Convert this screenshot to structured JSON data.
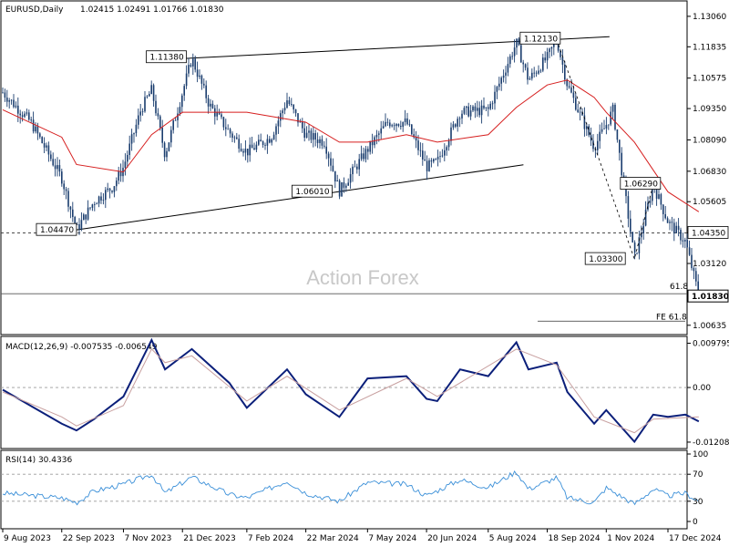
{
  "header": {
    "symbol": "EURUSD,Daily",
    "ohlc": "1.02415 1.02491 1.01766 1.01830"
  },
  "watermark": "Action Forex",
  "colors": {
    "background": "#ffffff",
    "candle": "#1a3d6e",
    "ma": "#d61f1f",
    "macd": "#0b1f7a",
    "signal": "#c8a0a0",
    "rsi": "#3a8fd8",
    "grid": "#9a9a9a"
  },
  "chart_data": [
    {
      "type": "candlestick",
      "title": "EURUSD,Daily",
      "x_tick_labels": [
        "9 Aug 2023",
        "22 Sep 2023",
        "7 Nov 2023",
        "21 Dec 2023",
        "7 Feb 2024",
        "22 Mar 2024",
        "7 May 2024",
        "20 Jun 2024",
        "5 Aug 2024",
        "18 Sep 2024",
        "1 Nov 2024",
        "17 Dec 2024"
      ],
      "y_tick_labels": [
        "1.13060",
        "1.11835",
        "1.10575",
        "1.09350",
        "1.08090",
        "1.06830",
        "1.05605",
        "1.04350",
        "1.03120",
        "1.01830",
        "1.00635"
      ],
      "ylim": [
        1.0026,
        1.1368
      ],
      "current_price": "1.01830",
      "highlight_level": "1.04350",
      "price_path": [
        {
          "x": "9 Aug 2023",
          "y": 1.1
        },
        {
          "x": "30 Aug 2023",
          "y": 1.088
        },
        {
          "x": "22 Sep 2023",
          "y": 1.0655
        },
        {
          "x": "3 Oct 2023",
          "y": 1.0448
        },
        {
          "x": "16 Oct 2023",
          "y": 1.056
        },
        {
          "x": "30 Oct 2023",
          "y": 1.062
        },
        {
          "x": "7 Nov 2023",
          "y": 1.07
        },
        {
          "x": "20 Nov 2023",
          "y": 1.093
        },
        {
          "x": "28 Nov 2023",
          "y": 1.101
        },
        {
          "x": "8 Dec 2023",
          "y": 1.075
        },
        {
          "x": "21 Dec 2023",
          "y": 1.1
        },
        {
          "x": "28 Dec 2023",
          "y": 1.1138
        },
        {
          "x": "10 Jan 2024",
          "y": 1.095
        },
        {
          "x": "25 Jan 2024",
          "y": 1.084
        },
        {
          "x": "7 Feb 2024",
          "y": 1.076
        },
        {
          "x": "25 Feb 2024",
          "y": 1.082
        },
        {
          "x": "8 Mar 2024",
          "y": 1.097
        },
        {
          "x": "22 Mar 2024",
          "y": 1.083
        },
        {
          "x": "5 Apr 2024",
          "y": 1.08
        },
        {
          "x": "16 Apr 2024",
          "y": 1.0602
        },
        {
          "x": "7 May 2024",
          "y": 1.077
        },
        {
          "x": "22 May 2024",
          "y": 1.088
        },
        {
          "x": "5 Jun 2024",
          "y": 1.088
        },
        {
          "x": "20 Jun 2024",
          "y": 1.07
        },
        {
          "x": "28 Jun 2024",
          "y": 1.072
        },
        {
          "x": "15 Jul 2024",
          "y": 1.092
        },
        {
          "x": "5 Aug 2024",
          "y": 1.093
        },
        {
          "x": "26 Aug 2024",
          "y": 1.12
        },
        {
          "x": "4 Sep 2024",
          "y": 1.105
        },
        {
          "x": "18 Sep 2024",
          "y": 1.114
        },
        {
          "x": "25 Sep 2024",
          "y": 1.1213
        },
        {
          "x": "3 Oct 2024",
          "y": 1.103
        },
        {
          "x": "23 Oct 2024",
          "y": 1.078
        },
        {
          "x": "1 Nov 2024",
          "y": 1.087
        },
        {
          "x": "6 Nov 2024",
          "y": 1.093
        },
        {
          "x": "22 Nov 2024",
          "y": 1.033
        },
        {
          "x": "6 Dec 2024",
          "y": 1.0629
        },
        {
          "x": "17 Dec 2024",
          "y": 1.048
        },
        {
          "x": "30 Dec 2024",
          "y": 1.04
        },
        {
          "x": "9 Jan 2025",
          "y": 1.0183
        }
      ],
      "moving_average_path": [
        {
          "x": "9 Aug 2023",
          "y": 1.093
        },
        {
          "x": "22 Sep 2023",
          "y": 1.082
        },
        {
          "x": "3 Oct 2023",
          "y": 1.071
        },
        {
          "x": "7 Nov 2023",
          "y": 1.068
        },
        {
          "x": "28 Nov 2023",
          "y": 1.083
        },
        {
          "x": "21 Dec 2023",
          "y": 1.092
        },
        {
          "x": "7 Feb 2024",
          "y": 1.092
        },
        {
          "x": "22 Mar 2024",
          "y": 1.088
        },
        {
          "x": "16 Apr 2024",
          "y": 1.08
        },
        {
          "x": "7 May 2024",
          "y": 1.08
        },
        {
          "x": "5 Jun 2024",
          "y": 1.083
        },
        {
          "x": "28 Jun 2024",
          "y": 1.08
        },
        {
          "x": "5 Aug 2024",
          "y": 1.083
        },
        {
          "x": "26 Aug 2024",
          "y": 1.094
        },
        {
          "x": "18 Sep 2024",
          "y": 1.103
        },
        {
          "x": "3 Oct 2024",
          "y": 1.105
        },
        {
          "x": "23 Oct 2024",
          "y": 1.098
        },
        {
          "x": "1 Nov 2024",
          "y": 1.092
        },
        {
          "x": "22 Nov 2024",
          "y": 1.08
        },
        {
          "x": "17 Dec 2024",
          "y": 1.06
        },
        {
          "x": "9 Jan 2025",
          "y": 1.052
        }
      ],
      "annotations": [
        {
          "text": "1.11380",
          "x": "28 Dec 2023",
          "y": 1.1138
        },
        {
          "text": "1.12130",
          "x": "25 Sep 2024",
          "y": 1.1213
        },
        {
          "text": "1.04470",
          "x": "3 Oct 2023",
          "y": 1.0447
        },
        {
          "text": "1.06010",
          "x": "16 Apr 2024",
          "y": 1.0601
        },
        {
          "text": "1.06290",
          "x": "6 Dec 2024",
          "y": 1.0629
        },
        {
          "text": "1.03300",
          "x": "22 Nov 2024",
          "y": 1.033
        },
        {
          "text": "61.8",
          "x": "9 Jan 2025",
          "y": 1.022
        },
        {
          "text": "FE 61.8",
          "x": "9 Jan 2025",
          "y": 1.008
        }
      ],
      "grid": false
    },
    {
      "type": "line",
      "title": "MACD(12,26,9) -0.007535 -0.006549",
      "y_tick_labels": [
        "0.009795",
        "0.00",
        "-0.012081"
      ],
      "ylim": [
        -0.0135,
        0.0113
      ],
      "series": [
        {
          "name": "MACD",
          "points": [
            {
              "x": "9 Aug 2023",
              "y": -0.0005
            },
            {
              "x": "22 Sep 2023",
              "y": -0.008
            },
            {
              "x": "3 Oct 2023",
              "y": -0.0095
            },
            {
              "x": "16 Oct 2023",
              "y": -0.007
            },
            {
              "x": "7 Nov 2023",
              "y": -0.002
            },
            {
              "x": "28 Nov 2023",
              "y": 0.0105
            },
            {
              "x": "8 Dec 2023",
              "y": 0.004
            },
            {
              "x": "28 Dec 2023",
              "y": 0.0085
            },
            {
              "x": "25 Jan 2024",
              "y": 0.001
            },
            {
              "x": "7 Feb 2024",
              "y": -0.0045
            },
            {
              "x": "8 Mar 2024",
              "y": 0.004
            },
            {
              "x": "22 Mar 2024",
              "y": -0.0015
            },
            {
              "x": "16 Apr 2024",
              "y": -0.0065
            },
            {
              "x": "7 May 2024",
              "y": 0.002
            },
            {
              "x": "5 Jun 2024",
              "y": 0.0025
            },
            {
              "x": "20 Jun 2024",
              "y": -0.0025
            },
            {
              "x": "28 Jun 2024",
              "y": -0.003
            },
            {
              "x": "15 Jul 2024",
              "y": 0.004
            },
            {
              "x": "5 Aug 2024",
              "y": 0.0025
            },
            {
              "x": "26 Aug 2024",
              "y": 0.01
            },
            {
              "x": "4 Sep 2024",
              "y": 0.004
            },
            {
              "x": "25 Sep 2024",
              "y": 0.0055
            },
            {
              "x": "3 Oct 2024",
              "y": -0.001
            },
            {
              "x": "23 Oct 2024",
              "y": -0.008
            },
            {
              "x": "1 Nov 2024",
              "y": -0.005
            },
            {
              "x": "22 Nov 2024",
              "y": -0.012
            },
            {
              "x": "6 Dec 2024",
              "y": -0.006
            },
            {
              "x": "17 Dec 2024",
              "y": -0.0065
            },
            {
              "x": "30 Dec 2024",
              "y": -0.006
            },
            {
              "x": "9 Jan 2025",
              "y": -0.0075
            }
          ]
        },
        {
          "name": "Signal",
          "points": [
            {
              "x": "9 Aug 2023",
              "y": -0.001
            },
            {
              "x": "22 Sep 2023",
              "y": -0.0065
            },
            {
              "x": "3 Oct 2023",
              "y": -0.0085
            },
            {
              "x": "7 Nov 2023",
              "y": -0.004
            },
            {
              "x": "28 Nov 2023",
              "y": 0.0085
            },
            {
              "x": "8 Dec 2023",
              "y": 0.0055
            },
            {
              "x": "28 Dec 2023",
              "y": 0.007
            },
            {
              "x": "7 Feb 2024",
              "y": -0.003
            },
            {
              "x": "8 Mar 2024",
              "y": 0.0025
            },
            {
              "x": "16 Apr 2024",
              "y": -0.005
            },
            {
              "x": "5 Jun 2024",
              "y": 0.002
            },
            {
              "x": "28 Jun 2024",
              "y": -0.002
            },
            {
              "x": "26 Aug 2024",
              "y": 0.0085
            },
            {
              "x": "25 Sep 2024",
              "y": 0.005
            },
            {
              "x": "23 Oct 2024",
              "y": -0.0065
            },
            {
              "x": "22 Nov 2024",
              "y": -0.01
            },
            {
              "x": "6 Dec 2024",
              "y": -0.007
            },
            {
              "x": "9 Jan 2025",
              "y": -0.0065
            }
          ]
        }
      ]
    },
    {
      "type": "line",
      "title": "RSI(14) 30.4336",
      "y_tick_labels": [
        "100",
        "70",
        "30",
        "0"
      ],
      "ylim": [
        0,
        100
      ],
      "series": [
        {
          "name": "RSI",
          "points": [
            {
              "x": "9 Aug 2023",
              "y": 42
            },
            {
              "x": "22 Sep 2023",
              "y": 35
            },
            {
              "x": "3 Oct 2023",
              "y": 28
            },
            {
              "x": "16 Oct 2023",
              "y": 45
            },
            {
              "x": "7 Nov 2023",
              "y": 55
            },
            {
              "x": "28 Nov 2023",
              "y": 70
            },
            {
              "x": "8 Dec 2023",
              "y": 42
            },
            {
              "x": "28 Dec 2023",
              "y": 66
            },
            {
              "x": "25 Jan 2024",
              "y": 40
            },
            {
              "x": "7 Feb 2024",
              "y": 35
            },
            {
              "x": "8 Mar 2024",
              "y": 60
            },
            {
              "x": "22 Mar 2024",
              "y": 42
            },
            {
              "x": "16 Apr 2024",
              "y": 30
            },
            {
              "x": "7 May 2024",
              "y": 58
            },
            {
              "x": "5 Jun 2024",
              "y": 55
            },
            {
              "x": "20 Jun 2024",
              "y": 38
            },
            {
              "x": "15 Jul 2024",
              "y": 62
            },
            {
              "x": "5 Aug 2024",
              "y": 50
            },
            {
              "x": "26 Aug 2024",
              "y": 74
            },
            {
              "x": "4 Sep 2024",
              "y": 48
            },
            {
              "x": "25 Sep 2024",
              "y": 65
            },
            {
              "x": "3 Oct 2024",
              "y": 35
            },
            {
              "x": "23 Oct 2024",
              "y": 28
            },
            {
              "x": "1 Nov 2024",
              "y": 50
            },
            {
              "x": "22 Nov 2024",
              "y": 26
            },
            {
              "x": "6 Dec 2024",
              "y": 48
            },
            {
              "x": "17 Dec 2024",
              "y": 38
            },
            {
              "x": "30 Dec 2024",
              "y": 42
            },
            {
              "x": "9 Jan 2025",
              "y": 30
            }
          ]
        }
      ],
      "reference_levels": [
        70,
        30
      ]
    }
  ]
}
